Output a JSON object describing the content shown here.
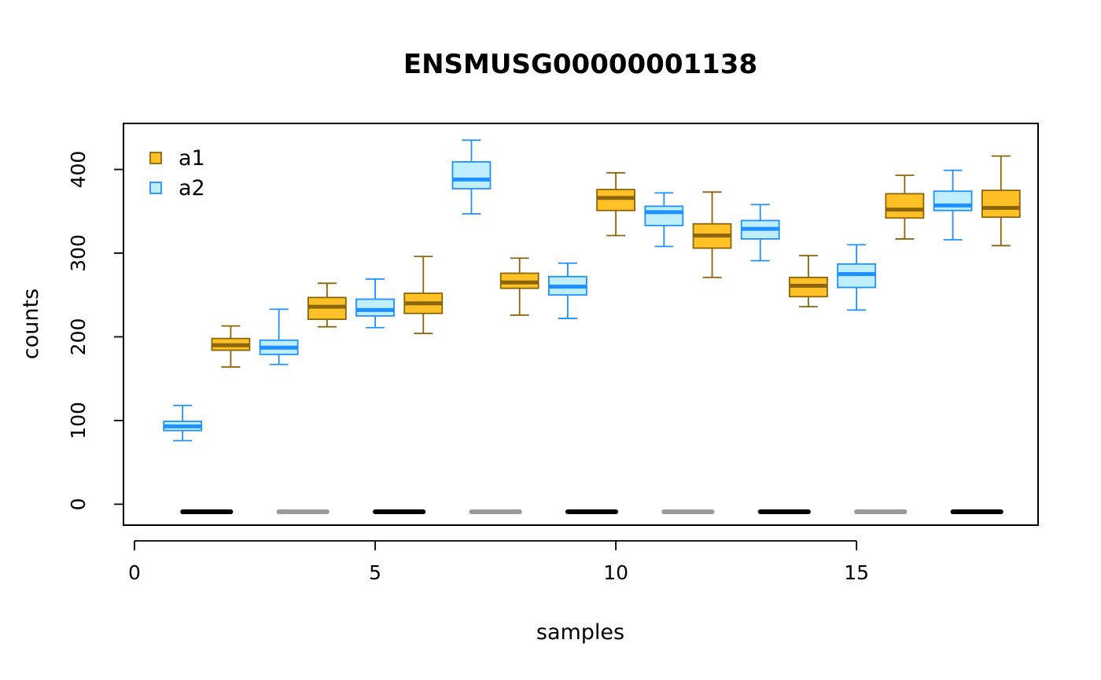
{
  "chart_data": {
    "type": "boxplot",
    "title": "ENSMUSG00000001138",
    "xlabel": "samples",
    "ylabel": "counts",
    "xlim": [
      0,
      19
    ],
    "ylim": [
      -25,
      455
    ],
    "x_ticks": [
      0,
      5,
      10,
      15
    ],
    "y_ticks": [
      0,
      100,
      200,
      300,
      400
    ],
    "grid": false,
    "legend": {
      "position": "top-left",
      "entries": [
        {
          "label": "a1",
          "fill": "#FFC125",
          "stroke": "#8B6508"
        },
        {
          "label": "a2",
          "fill": "#BFEFFF",
          "stroke": "#1E90FF"
        }
      ]
    },
    "boxes": [
      {
        "x": 1.0,
        "group": "a2",
        "whisker_low": 76,
        "q1": 88,
        "median": 93,
        "q3": 99,
        "whisker_high": 118
      },
      {
        "x": 2.0,
        "group": "a1",
        "whisker_low": 164,
        "q1": 184,
        "median": 190,
        "q3": 198,
        "whisker_high": 213
      },
      {
        "x": 3.0,
        "group": "a2",
        "whisker_low": 167,
        "q1": 179,
        "median": 187,
        "q3": 196,
        "whisker_high": 233
      },
      {
        "x": 4.0,
        "group": "a1",
        "whisker_low": 212,
        "q1": 221,
        "median": 236,
        "q3": 247,
        "whisker_high": 264
      },
      {
        "x": 5.0,
        "group": "a2",
        "whisker_low": 211,
        "q1": 225,
        "median": 232,
        "q3": 245,
        "whisker_high": 269
      },
      {
        "x": 6.0,
        "group": "a1",
        "whisker_low": 204,
        "q1": 228,
        "median": 240,
        "q3": 252,
        "whisker_high": 296
      },
      {
        "x": 7.0,
        "group": "a2",
        "whisker_low": 347,
        "q1": 377,
        "median": 388,
        "q3": 409,
        "whisker_high": 435
      },
      {
        "x": 8.0,
        "group": "a1",
        "whisker_low": 226,
        "q1": 258,
        "median": 265,
        "q3": 276,
        "whisker_high": 294
      },
      {
        "x": 9.0,
        "group": "a2",
        "whisker_low": 222,
        "q1": 250,
        "median": 260,
        "q3": 272,
        "whisker_high": 288
      },
      {
        "x": 10.0,
        "group": "a1",
        "whisker_low": 321,
        "q1": 351,
        "median": 366,
        "q3": 376,
        "whisker_high": 396
      },
      {
        "x": 11.0,
        "group": "a2",
        "whisker_low": 308,
        "q1": 333,
        "median": 349,
        "q3": 356,
        "whisker_high": 372
      },
      {
        "x": 12.0,
        "group": "a1",
        "whisker_low": 271,
        "q1": 306,
        "median": 321,
        "q3": 335,
        "whisker_high": 373
      },
      {
        "x": 13.0,
        "group": "a2",
        "whisker_low": 291,
        "q1": 317,
        "median": 329,
        "q3": 339,
        "whisker_high": 358
      },
      {
        "x": 14.0,
        "group": "a1",
        "whisker_low": 236,
        "q1": 248,
        "median": 261,
        "q3": 271,
        "whisker_high": 297
      },
      {
        "x": 15.0,
        "group": "a2",
        "whisker_low": 232,
        "q1": 259,
        "median": 275,
        "q3": 287,
        "whisker_high": 310
      },
      {
        "x": 16.0,
        "group": "a1",
        "whisker_low": 317,
        "q1": 342,
        "median": 352,
        "q3": 371,
        "whisker_high": 393
      },
      {
        "x": 17.0,
        "group": "a2",
        "whisker_low": 316,
        "q1": 351,
        "median": 357,
        "q3": 374,
        "whisker_high": 399
      },
      {
        "x": 18.0,
        "group": "a1",
        "whisker_low": 309,
        "q1": 343,
        "median": 354,
        "q3": 375,
        "whisker_high": 416
      }
    ],
    "sample_bars": [
      {
        "x_start": 1.0,
        "x_end": 2.0,
        "y": -9,
        "color": "#000000"
      },
      {
        "x_start": 3.0,
        "x_end": 4.0,
        "y": -9,
        "color": "#999999"
      },
      {
        "x_start": 5.0,
        "x_end": 6.0,
        "y": -9,
        "color": "#000000"
      },
      {
        "x_start": 7.0,
        "x_end": 8.0,
        "y": -9,
        "color": "#999999"
      },
      {
        "x_start": 9.0,
        "x_end": 10.0,
        "y": -9,
        "color": "#000000"
      },
      {
        "x_start": 11.0,
        "x_end": 12.0,
        "y": -9,
        "color": "#999999"
      },
      {
        "x_start": 13.0,
        "x_end": 14.0,
        "y": -9,
        "color": "#000000"
      },
      {
        "x_start": 15.0,
        "x_end": 16.0,
        "y": -9,
        "color": "#999999"
      },
      {
        "x_start": 17.0,
        "x_end": 18.0,
        "y": -9,
        "color": "#000000"
      }
    ],
    "colors": {
      "a1_fill": "#FFC125",
      "a1_stroke": "#8B6508",
      "a2_fill": "#BFEFFF",
      "a2_stroke": "#1E90FF"
    }
  }
}
